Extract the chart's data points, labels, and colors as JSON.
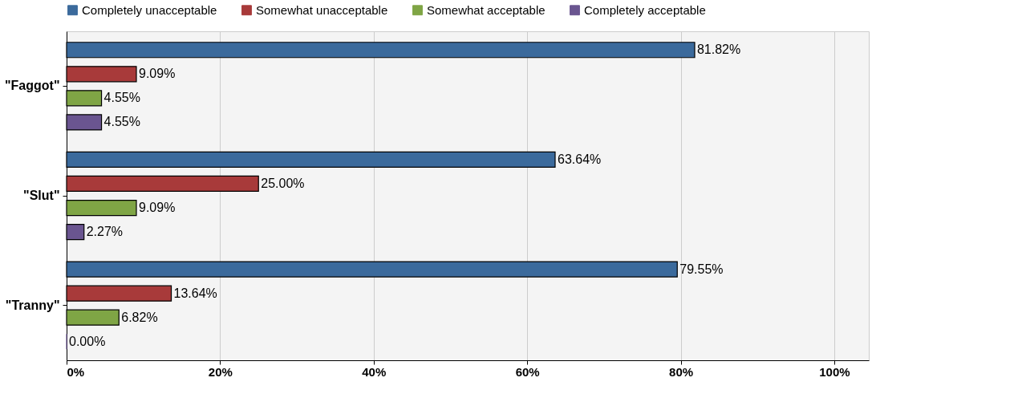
{
  "chart_data": {
    "type": "bar",
    "orientation": "horizontal",
    "categories": [
      "\"Faggot\"",
      "\"Slut\"",
      "\"Tranny\""
    ],
    "series": [
      {
        "name": "Completely unacceptable",
        "color": "#3b6a9c",
        "values": [
          81.82,
          63.64,
          79.55
        ],
        "value_labels": [
          "81.82%",
          "63.64%",
          "79.55%"
        ]
      },
      {
        "name": "Somewhat unacceptable",
        "color": "#a83a3a",
        "values": [
          9.09,
          25.0,
          13.64
        ],
        "value_labels": [
          "9.09%",
          "25.00%",
          "13.64%"
        ]
      },
      {
        "name": "Somewhat acceptable",
        "color": "#7fa545",
        "values": [
          4.55,
          9.09,
          6.82
        ],
        "value_labels": [
          "4.55%",
          "9.09%",
          "6.82%"
        ]
      },
      {
        "name": "Completely acceptable",
        "color": "#6a5590",
        "values": [
          4.55,
          2.27,
          0.0
        ],
        "value_labels": [
          "4.55%",
          "2.27%",
          "0.00%"
        ]
      }
    ],
    "xlim": [
      0,
      104.5
    ],
    "xticks": [
      {
        "value": 0,
        "label": "0%"
      },
      {
        "value": 20,
        "label": "20%"
      },
      {
        "value": 40,
        "label": "40%"
      },
      {
        "value": 60,
        "label": "60%"
      },
      {
        "value": 80,
        "label": "80%"
      },
      {
        "value": 100,
        "label": "100%"
      }
    ],
    "grid": "x",
    "legend": "top"
  }
}
